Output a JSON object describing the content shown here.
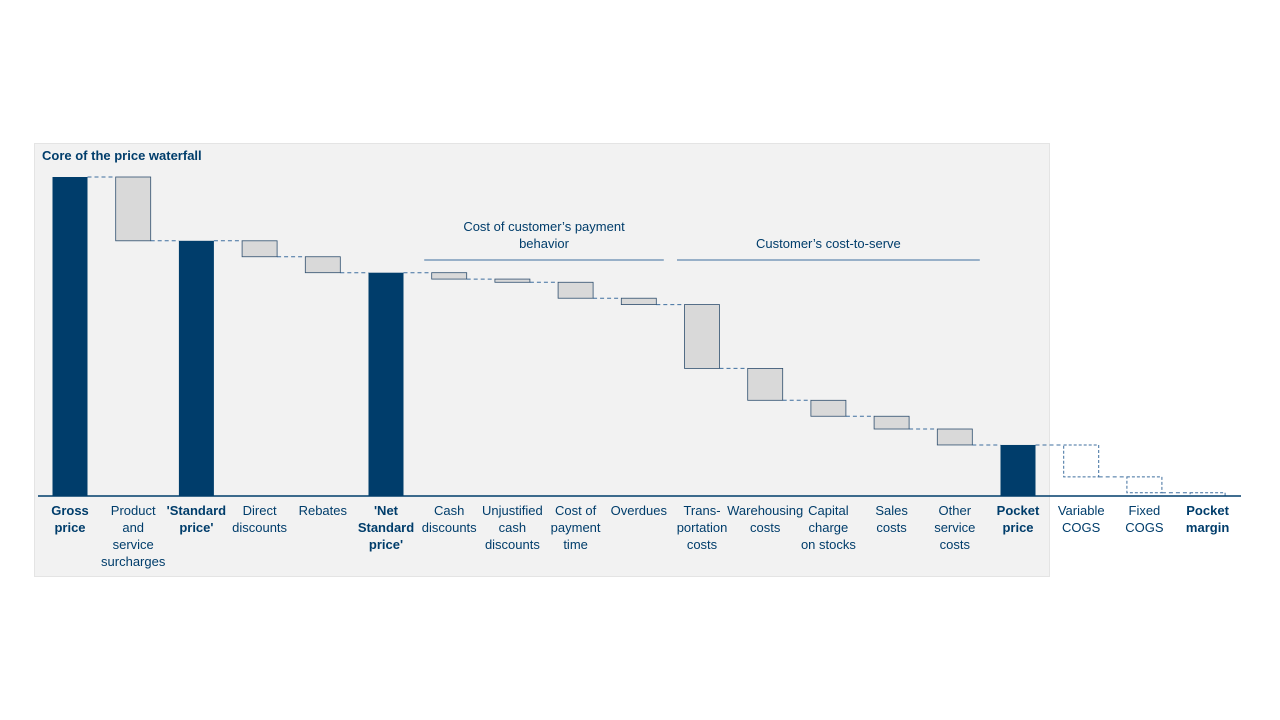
{
  "chart_data": {
    "type": "waterfall",
    "title": "Core of the price waterfall",
    "colors": {
      "total": "#003d6b",
      "step": "#d9d9d9",
      "step_border": "#2f4f6f",
      "connector": "#3f6f9f",
      "text": "#003d6b"
    },
    "ylim": [
      0,
      100
    ],
    "steps": [
      {
        "label": [
          "Gross",
          "price"
        ],
        "kind": "total",
        "value": 100,
        "bold": true
      },
      {
        "label": [
          "Product",
          "and",
          "service",
          "surcharges"
        ],
        "kind": "decrease",
        "value": 20
      },
      {
        "label": [
          "'Standard",
          "price'"
        ],
        "kind": "total",
        "value": 80,
        "bold": true
      },
      {
        "label": [
          "Direct",
          "discounts"
        ],
        "kind": "decrease",
        "value": 5
      },
      {
        "label": [
          "Rebates"
        ],
        "kind": "decrease",
        "value": 5
      },
      {
        "label": [
          "'Net",
          "Standard",
          "price'"
        ],
        "kind": "total",
        "value": 70,
        "bold": true
      },
      {
        "label": [
          "Cash",
          "discounts"
        ],
        "kind": "decrease",
        "value": 2
      },
      {
        "label": [
          "Unjustified",
          "cash",
          "discounts"
        ],
        "kind": "decrease",
        "value": 1
      },
      {
        "label": [
          "Cost of",
          "payment",
          "time"
        ],
        "kind": "decrease",
        "value": 5
      },
      {
        "label": [
          "Overdues"
        ],
        "kind": "decrease",
        "value": 2
      },
      {
        "label": [
          "Trans-",
          "portation",
          "costs"
        ],
        "kind": "decrease",
        "value": 20
      },
      {
        "label": [
          "Warehousing",
          "costs"
        ],
        "kind": "decrease",
        "value": 10
      },
      {
        "label": [
          "Capital",
          "charge",
          "on stocks"
        ],
        "kind": "decrease",
        "value": 5
      },
      {
        "label": [
          "Sales",
          "costs"
        ],
        "kind": "decrease",
        "value": 4
      },
      {
        "label": [
          "Other",
          "service",
          "costs"
        ],
        "kind": "decrease",
        "value": 5
      },
      {
        "label": [
          "Pocket",
          "price"
        ],
        "kind": "total",
        "value": 16,
        "bold": true
      },
      {
        "label": [
          "Variable",
          "COGS"
        ],
        "kind": "decrease_dashed",
        "value": 10
      },
      {
        "label": [
          "Fixed",
          "COGS"
        ],
        "kind": "decrease_dashed",
        "value": 5
      },
      {
        "label": [
          "Pocket",
          "margin"
        ],
        "kind": "total_dashed",
        "value": 1,
        "bold": true
      }
    ],
    "groups": [
      {
        "label": [
          "Cost of customer’s payment",
          "behavior"
        ],
        "from": 6,
        "to": 9
      },
      {
        "label": [
          "Customer’s cost-to-serve"
        ],
        "from": 10,
        "to": 14
      }
    ]
  }
}
